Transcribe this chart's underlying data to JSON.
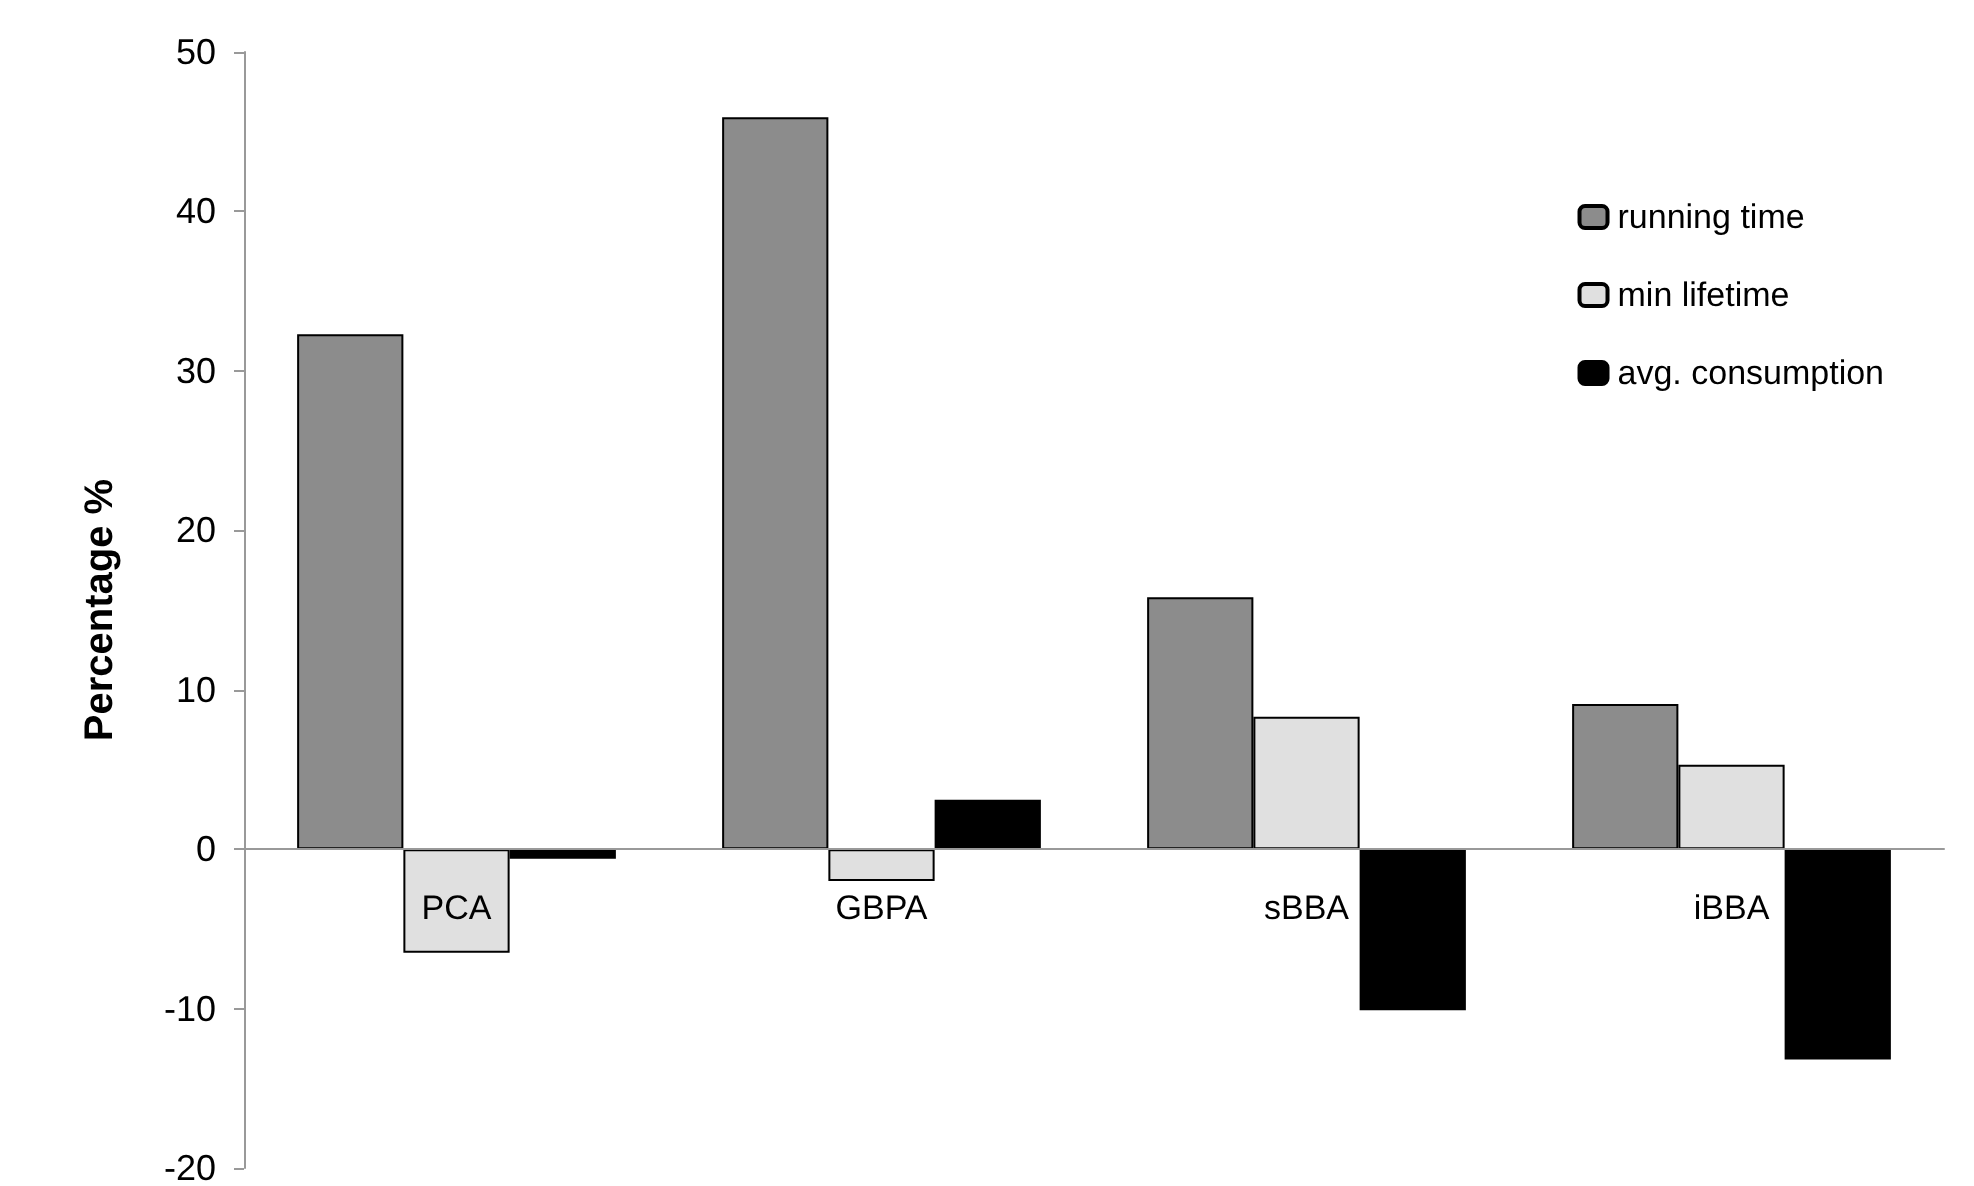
{
  "chart_data": {
    "type": "bar",
    "ylabel": "Percentage %",
    "categories": [
      "PCA",
      "GBPA",
      "sBBA",
      "iBBA"
    ],
    "series": [
      {
        "name": "running time",
        "color": "#8c8c8c",
        "values": [
          32.3,
          45.9,
          15.8,
          9.1
        ]
      },
      {
        "name": "min lifetime",
        "color": "#e0e0e0",
        "values": [
          -6.5,
          -2.0,
          8.3,
          5.3
        ]
      },
      {
        "name": "avg. consumption",
        "color": "#000000",
        "values": [
          -0.6,
          3.1,
          -10.1,
          -13.2
        ]
      }
    ],
    "ylim": [
      -20,
      50
    ],
    "yticks": [
      -20,
      -10,
      0,
      10,
      20,
      30,
      40,
      50
    ],
    "legend": "top right"
  }
}
